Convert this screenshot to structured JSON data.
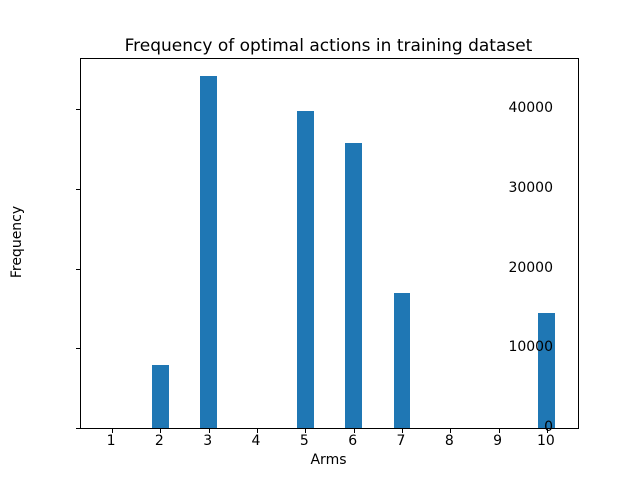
{
  "chart_data": {
    "type": "bar",
    "title": "Frequency of optimal actions in training dataset",
    "xlabel": "Arms",
    "ylabel": "Frequency",
    "categories": [
      1,
      2,
      3,
      4,
      5,
      6,
      7,
      8,
      9,
      10
    ],
    "values": [
      0,
      7900,
      44200,
      0,
      39800,
      35800,
      17000,
      0,
      0,
      14400
    ],
    "yticks": [
      0,
      10000,
      20000,
      30000,
      40000
    ],
    "ylim": [
      0,
      46300
    ],
    "xlim": [
      0.3575,
      10.6425
    ],
    "bar_width_units": 0.35,
    "bar_color": "#1f77b4",
    "grid": false,
    "legend": "none",
    "background_color": "#ffffff",
    "spine_color": "#000000"
  }
}
